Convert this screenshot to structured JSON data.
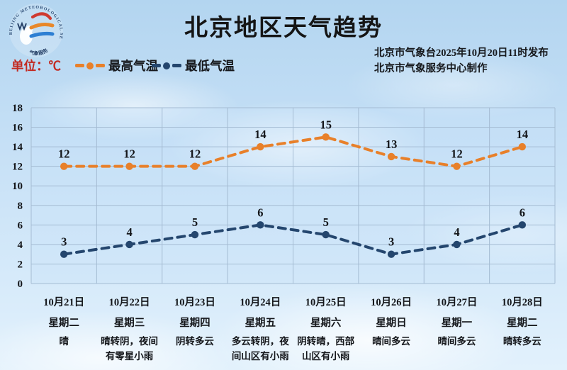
{
  "header": {
    "title": "北京地区天气趋势",
    "issuer_line1": "北京市气象台2025年10月20日11时发布",
    "issuer_line2": "北京市气象服务中心制作"
  },
  "legend": {
    "unit_label": "单位：℃"
  },
  "logo": {
    "arc_top": "BEIJING METEOROLOGICAL SERVICE",
    "arc_bottom": "气象服务"
  },
  "colors": {
    "high_series": "#e8802a",
    "low_series": "#24466e",
    "unit_text": "#c22a22",
    "grid_line": "#a5bcd3",
    "label_text": "#14161a"
  },
  "chart_data": {
    "type": "line",
    "title": "北京地区天气趋势",
    "ylabel": "℃",
    "ylim": [
      0,
      18
    ],
    "ytick_step": 2,
    "grid": true,
    "legend_position": "top",
    "categories": [
      "10月21日",
      "10月22日",
      "10月23日",
      "10月24日",
      "10月25日",
      "10月26日",
      "10月27日",
      "10月28日"
    ],
    "series": [
      {
        "name": "最高气温",
        "color": "#e8802a",
        "style": "dashed",
        "values": [
          12,
          12,
          12,
          14,
          15,
          13,
          12,
          14
        ]
      },
      {
        "name": "最低气温",
        "color": "#24466e",
        "style": "dashed",
        "values": [
          3,
          4,
          5,
          6,
          5,
          3,
          4,
          6
        ]
      }
    ],
    "days": [
      {
        "date": "10月21日",
        "weekday": "星期二",
        "weather": "晴"
      },
      {
        "date": "10月22日",
        "weekday": "星期三",
        "weather": "晴转阴，夜间有零星小雨"
      },
      {
        "date": "10月23日",
        "weekday": "星期四",
        "weather": "阴转多云"
      },
      {
        "date": "10月24日",
        "weekday": "星期五",
        "weather": "多云转阴，夜间山区有小雨"
      },
      {
        "date": "10月25日",
        "weekday": "星期六",
        "weather": "阴转晴，西部山区有小雨"
      },
      {
        "date": "10月26日",
        "weekday": "星期日",
        "weather": "晴间多云"
      },
      {
        "date": "10月27日",
        "weekday": "星期一",
        "weather": "晴间多云"
      },
      {
        "date": "10月28日",
        "weekday": "星期二",
        "weather": "晴转多云"
      }
    ]
  }
}
